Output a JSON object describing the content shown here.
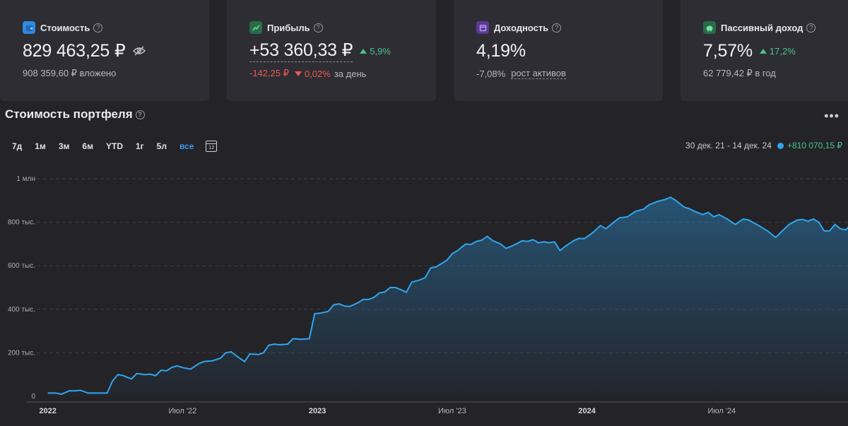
{
  "cards": [
    {
      "label": "Стоимость",
      "value": "829 463,25 ₽",
      "sub": "908 359,60 ₽ вложено",
      "icon": "wallet-icon",
      "color": "#2f8ae0"
    },
    {
      "label": "Прибыль",
      "value": "+53 360,33 ₽",
      "badge": "5,9%",
      "sub_value": "-142,25 ₽",
      "sub_badge": "0,02%",
      "sub_suffix": "за день",
      "icon": "chart-icon",
      "color": "#2f9a5e"
    },
    {
      "label": "Доходность",
      "value": "4,19%",
      "sub_value": "-7,08%",
      "sub_link": "рост активов",
      "icon": "calendar-icon",
      "color": "#8a54d6"
    },
    {
      "label": "Пассивный доход",
      "value": "7,57%",
      "badge": "17,2%",
      "sub": "62 779,42 ₽ в год",
      "icon": "piggy-bank-icon",
      "color": "#2f9a5e"
    }
  ],
  "chart_title": "Стоимость портфеля",
  "periods": [
    "7д",
    "1м",
    "3м",
    "6м",
    "YTD",
    "1г",
    "5л",
    "все"
  ],
  "active_period": "все",
  "calendar_icon_label": "12",
  "range": {
    "dates": "30 дек. 21 - 14 дек. 24",
    "gain": "+810 070,15 ₽"
  },
  "chart_data": {
    "type": "area",
    "series_color": "#2fa6ee",
    "ylim": [
      0,
      1000000
    ],
    "y_ticks": [
      {
        "value": 0,
        "label": "0"
      },
      {
        "value": 200000,
        "label": "200 тыс."
      },
      {
        "value": 400000,
        "label": "400 тыс."
      },
      {
        "value": 600000,
        "label": "600 тыс."
      },
      {
        "value": 800000,
        "label": "800 тыс."
      },
      {
        "value": 1000000,
        "label": "1 млн"
      }
    ],
    "xlim": [
      2021.98,
      2024.95
    ],
    "x_ticks": [
      {
        "value": 2022.0,
        "label": "2022",
        "bold": true
      },
      {
        "value": 2022.5,
        "label": "Июл '22",
        "bold": false
      },
      {
        "value": 2023.0,
        "label": "2023",
        "bold": true
      },
      {
        "value": 2023.5,
        "label": "Июл '23",
        "bold": false
      },
      {
        "value": 2024.0,
        "label": "2024",
        "bold": true
      },
      {
        "value": 2024.5,
        "label": "Июл '24",
        "bold": false
      }
    ],
    "points": [
      [
        2022.0,
        15000
      ],
      [
        2022.03,
        15000
      ],
      [
        2022.05,
        10000
      ],
      [
        2022.08,
        25000
      ],
      [
        2022.1,
        25000
      ],
      [
        2022.12,
        28000
      ],
      [
        2022.15,
        15000
      ],
      [
        2022.18,
        15000
      ],
      [
        2022.22,
        15000
      ],
      [
        2022.24,
        70000
      ],
      [
        2022.26,
        100000
      ],
      [
        2022.28,
        95000
      ],
      [
        2022.3,
        85000
      ],
      [
        2022.31,
        80000
      ],
      [
        2022.33,
        105000
      ],
      [
        2022.36,
        100000
      ],
      [
        2022.38,
        102000
      ],
      [
        2022.4,
        95000
      ],
      [
        2022.42,
        120000
      ],
      [
        2022.44,
        117000
      ],
      [
        2022.46,
        133000
      ],
      [
        2022.48,
        140000
      ],
      [
        2022.5,
        132000
      ],
      [
        2022.53,
        125000
      ],
      [
        2022.56,
        150000
      ],
      [
        2022.58,
        160000
      ],
      [
        2022.61,
        163000
      ],
      [
        2022.64,
        175000
      ],
      [
        2022.66,
        200000
      ],
      [
        2022.68,
        205000
      ],
      [
        2022.7,
        185000
      ],
      [
        2022.73,
        160000
      ],
      [
        2022.75,
        195000
      ],
      [
        2022.78,
        192000
      ],
      [
        2022.8,
        200000
      ],
      [
        2022.82,
        235000
      ],
      [
        2022.84,
        240000
      ],
      [
        2022.86,
        237000
      ],
      [
        2022.89,
        240000
      ],
      [
        2022.91,
        265000
      ],
      [
        2022.94,
        262000
      ],
      [
        2022.97,
        265000
      ],
      [
        2022.99,
        380000
      ],
      [
        2023.01,
        382000
      ],
      [
        2023.04,
        390000
      ],
      [
        2023.06,
        420000
      ],
      [
        2023.08,
        425000
      ],
      [
        2023.1,
        415000
      ],
      [
        2023.12,
        413000
      ],
      [
        2023.15,
        430000
      ],
      [
        2023.17,
        445000
      ],
      [
        2023.19,
        445000
      ],
      [
        2023.21,
        455000
      ],
      [
        2023.23,
        475000
      ],
      [
        2023.25,
        480000
      ],
      [
        2023.27,
        500000
      ],
      [
        2023.29,
        500000
      ],
      [
        2023.31,
        490000
      ],
      [
        2023.33,
        478000
      ],
      [
        2023.35,
        525000
      ],
      [
        2023.38,
        535000
      ],
      [
        2023.4,
        545000
      ],
      [
        2023.42,
        590000
      ],
      [
        2023.44,
        595000
      ],
      [
        2023.46,
        610000
      ],
      [
        2023.48,
        625000
      ],
      [
        2023.5,
        655000
      ],
      [
        2023.52,
        670000
      ],
      [
        2023.55,
        700000
      ],
      [
        2023.57,
        698000
      ],
      [
        2023.59,
        712000
      ],
      [
        2023.61,
        718000
      ],
      [
        2023.63,
        735000
      ],
      [
        2023.65,
        716000
      ],
      [
        2023.68,
        700000
      ],
      [
        2023.7,
        680000
      ],
      [
        2023.72,
        690000
      ],
      [
        2023.74,
        702000
      ],
      [
        2023.76,
        715000
      ],
      [
        2023.78,
        712000
      ],
      [
        2023.8,
        720000
      ],
      [
        2023.82,
        706000
      ],
      [
        2023.84,
        710000
      ],
      [
        2023.86,
        706000
      ],
      [
        2023.88,
        710000
      ],
      [
        2023.9,
        670000
      ],
      [
        2023.92,
        690000
      ],
      [
        2023.95,
        715000
      ],
      [
        2023.97,
        726000
      ],
      [
        2023.99,
        725000
      ],
      [
        2024.02,
        750000
      ],
      [
        2024.05,
        785000
      ],
      [
        2024.07,
        770000
      ],
      [
        2024.09,
        790000
      ],
      [
        2024.12,
        820000
      ],
      [
        2024.15,
        825000
      ],
      [
        2024.18,
        850000
      ],
      [
        2024.21,
        860000
      ],
      [
        2024.23,
        880000
      ],
      [
        2024.26,
        895000
      ],
      [
        2024.29,
        905000
      ],
      [
        2024.31,
        915000
      ],
      [
        2024.33,
        900000
      ],
      [
        2024.36,
        870000
      ],
      [
        2024.38,
        862000
      ],
      [
        2024.4,
        850000
      ],
      [
        2024.43,
        835000
      ],
      [
        2024.45,
        845000
      ],
      [
        2024.47,
        825000
      ],
      [
        2024.49,
        835000
      ],
      [
        2024.52,
        815000
      ],
      [
        2024.55,
        790000
      ],
      [
        2024.58,
        815000
      ],
      [
        2024.6,
        810000
      ],
      [
        2024.63,
        790000
      ],
      [
        2024.65,
        775000
      ],
      [
        2024.67,
        760000
      ],
      [
        2024.7,
        730000
      ],
      [
        2024.72,
        755000
      ],
      [
        2024.75,
        790000
      ],
      [
        2024.78,
        810000
      ],
      [
        2024.8,
        813000
      ],
      [
        2024.82,
        805000
      ],
      [
        2024.84,
        815000
      ],
      [
        2024.86,
        800000
      ],
      [
        2024.88,
        760000
      ],
      [
        2024.9,
        760000
      ],
      [
        2024.92,
        790000
      ],
      [
        2024.94,
        770000
      ],
      [
        2024.96,
        765000
      ],
      [
        2024.98,
        790000
      ],
      [
        2025.0,
        780000
      ],
      [
        2025.02,
        830000
      ]
    ]
  }
}
